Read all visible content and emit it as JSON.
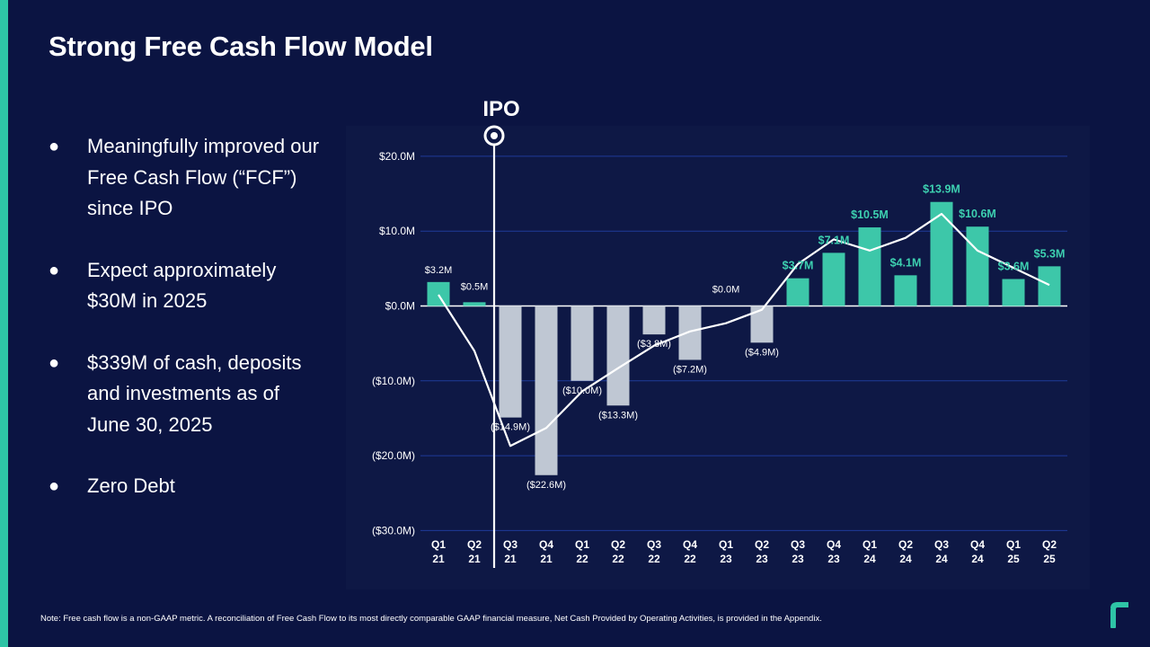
{
  "slide": {
    "title": "Strong Free Cash Flow Model",
    "bullets": [
      "Meaningfully improved our Free Cash Flow (“FCF”) since IPO",
      "Expect approximately $30M in 2025",
      "$339M of cash, deposits and investments as of June 30, 2025",
      "Zero Debt"
    ],
    "footnote": "Note: Free cash flow is a non-GAAP metric. A reconciliation of Free Cash Flow to its most directly comparable GAAP financial measure, Net Cash Provided by Operating Activities, is provided in the Appendix.",
    "logo_icon": "brand-logo-icon"
  },
  "chart_data": {
    "type": "bar",
    "categories": [
      [
        "Q1",
        "21"
      ],
      [
        "Q2",
        "21"
      ],
      [
        "Q3",
        "21"
      ],
      [
        "Q4",
        "21"
      ],
      [
        "Q1",
        "22"
      ],
      [
        "Q2",
        "22"
      ],
      [
        "Q3",
        "22"
      ],
      [
        "Q4",
        "22"
      ],
      [
        "Q1",
        "23"
      ],
      [
        "Q2",
        "23"
      ],
      [
        "Q3",
        "23"
      ],
      [
        "Q4",
        "23"
      ],
      [
        "Q1",
        "24"
      ],
      [
        "Q2",
        "24"
      ],
      [
        "Q3",
        "24"
      ],
      [
        "Q4",
        "24"
      ],
      [
        "Q1",
        "25"
      ],
      [
        "Q2",
        "25"
      ]
    ],
    "values": [
      3.2,
      0.5,
      -14.9,
      -22.6,
      -10.0,
      -13.3,
      -3.8,
      -7.2,
      0.0,
      -4.9,
      3.7,
      7.1,
      10.5,
      4.1,
      13.9,
      10.6,
      3.6,
      5.3
    ],
    "labels": [
      "$3.2M",
      "$0.5M",
      "($14.9M)",
      "($22.6M)",
      "($10.0M)",
      "($13.3M)",
      "($3.8M)",
      "($7.2M)",
      "$0.0M",
      "($4.9M)",
      "$3.7M",
      "$7.1M",
      "$10.5M",
      "$4.1M",
      "$13.9M",
      "$10.6M",
      "$3.6M",
      "$5.3M"
    ],
    "trend_line": [
      1.5,
      -6.0,
      -18.7,
      -16.3,
      -11.4,
      -8.3,
      -5.3,
      -3.4,
      -2.3,
      -0.5,
      5.6,
      8.9,
      7.4,
      9.1,
      12.3,
      7.4,
      5.1,
      2.8
    ],
    "yticks": [
      20,
      10,
      0,
      -10,
      -20,
      -30
    ],
    "ytick_labels": [
      "$20.0M",
      "$10.0M",
      "$0.0M",
      "($10.0M)",
      "($20.0M)",
      "($30.0M)"
    ],
    "ylim": [
      -30,
      20
    ],
    "annotation": {
      "label": "IPO",
      "between_categories": [
        1,
        2
      ]
    },
    "colors": {
      "negative_bar": "#bfc7d3",
      "positive_bar": "#3dc7a9",
      "positive_label": "#3dd0b0",
      "negative_label": "#ffffff",
      "line": "#ffffff",
      "grid": "#1f3a9a",
      "zero_line": "#ffffff"
    },
    "grid": true
  }
}
